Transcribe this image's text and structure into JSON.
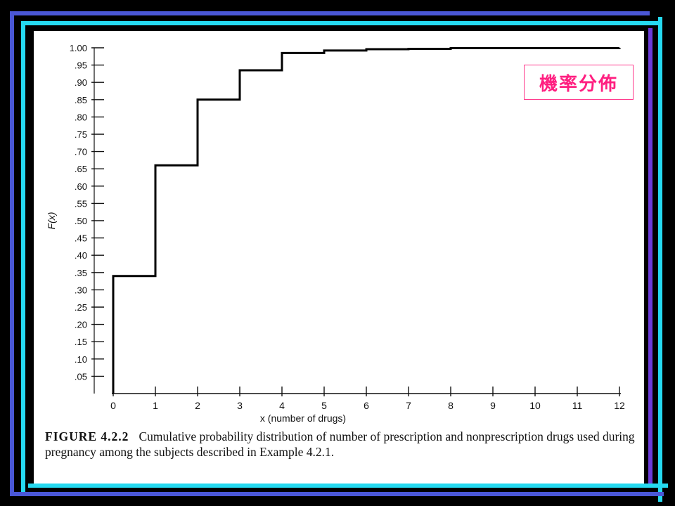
{
  "theme": {
    "background": "#000000",
    "bar_blue": "#4a57d6",
    "bar_cyan": "#25d9f0",
    "bar_violet": "#6c3bd8",
    "tag_color": "#ff1f80"
  },
  "tag_label": "機率分佈",
  "caption": {
    "figure_label": "FIGURE 4.2.2",
    "text": "Cumulative probability distribution of number of prescription and nonprescription drugs used during pregnancy among the subjects described in Example 4.2.1."
  },
  "chart_data": {
    "type": "line",
    "step": true,
    "title": "",
    "xlabel": "x (number of drugs)",
    "ylabel": "F(x)",
    "x_ticks": [
      "0",
      "1",
      "2",
      "3",
      "4",
      "5",
      "6",
      "7",
      "8",
      "9",
      "10",
      "11",
      "12"
    ],
    "y_ticks": [
      ".05",
      ".10",
      ".15",
      ".20",
      ".25",
      ".30",
      ".35",
      ".40",
      ".45",
      ".50",
      ".55",
      ".60",
      ".65",
      ".70",
      ".75",
      ".80",
      ".85",
      ".90",
      ".95",
      "1.00"
    ],
    "xlim": [
      0,
      12
    ],
    "ylim": [
      0,
      1.0
    ],
    "grid": false,
    "series": [
      {
        "x": [
          0,
          1,
          2,
          3,
          4,
          5,
          6,
          7,
          8,
          9,
          10,
          11,
          12
        ],
        "y": [
          0.34,
          0.66,
          0.85,
          0.935,
          0.985,
          0.992,
          0.996,
          0.997,
          0.999,
          0.999,
          0.999,
          0.999,
          1.0
        ]
      }
    ]
  }
}
